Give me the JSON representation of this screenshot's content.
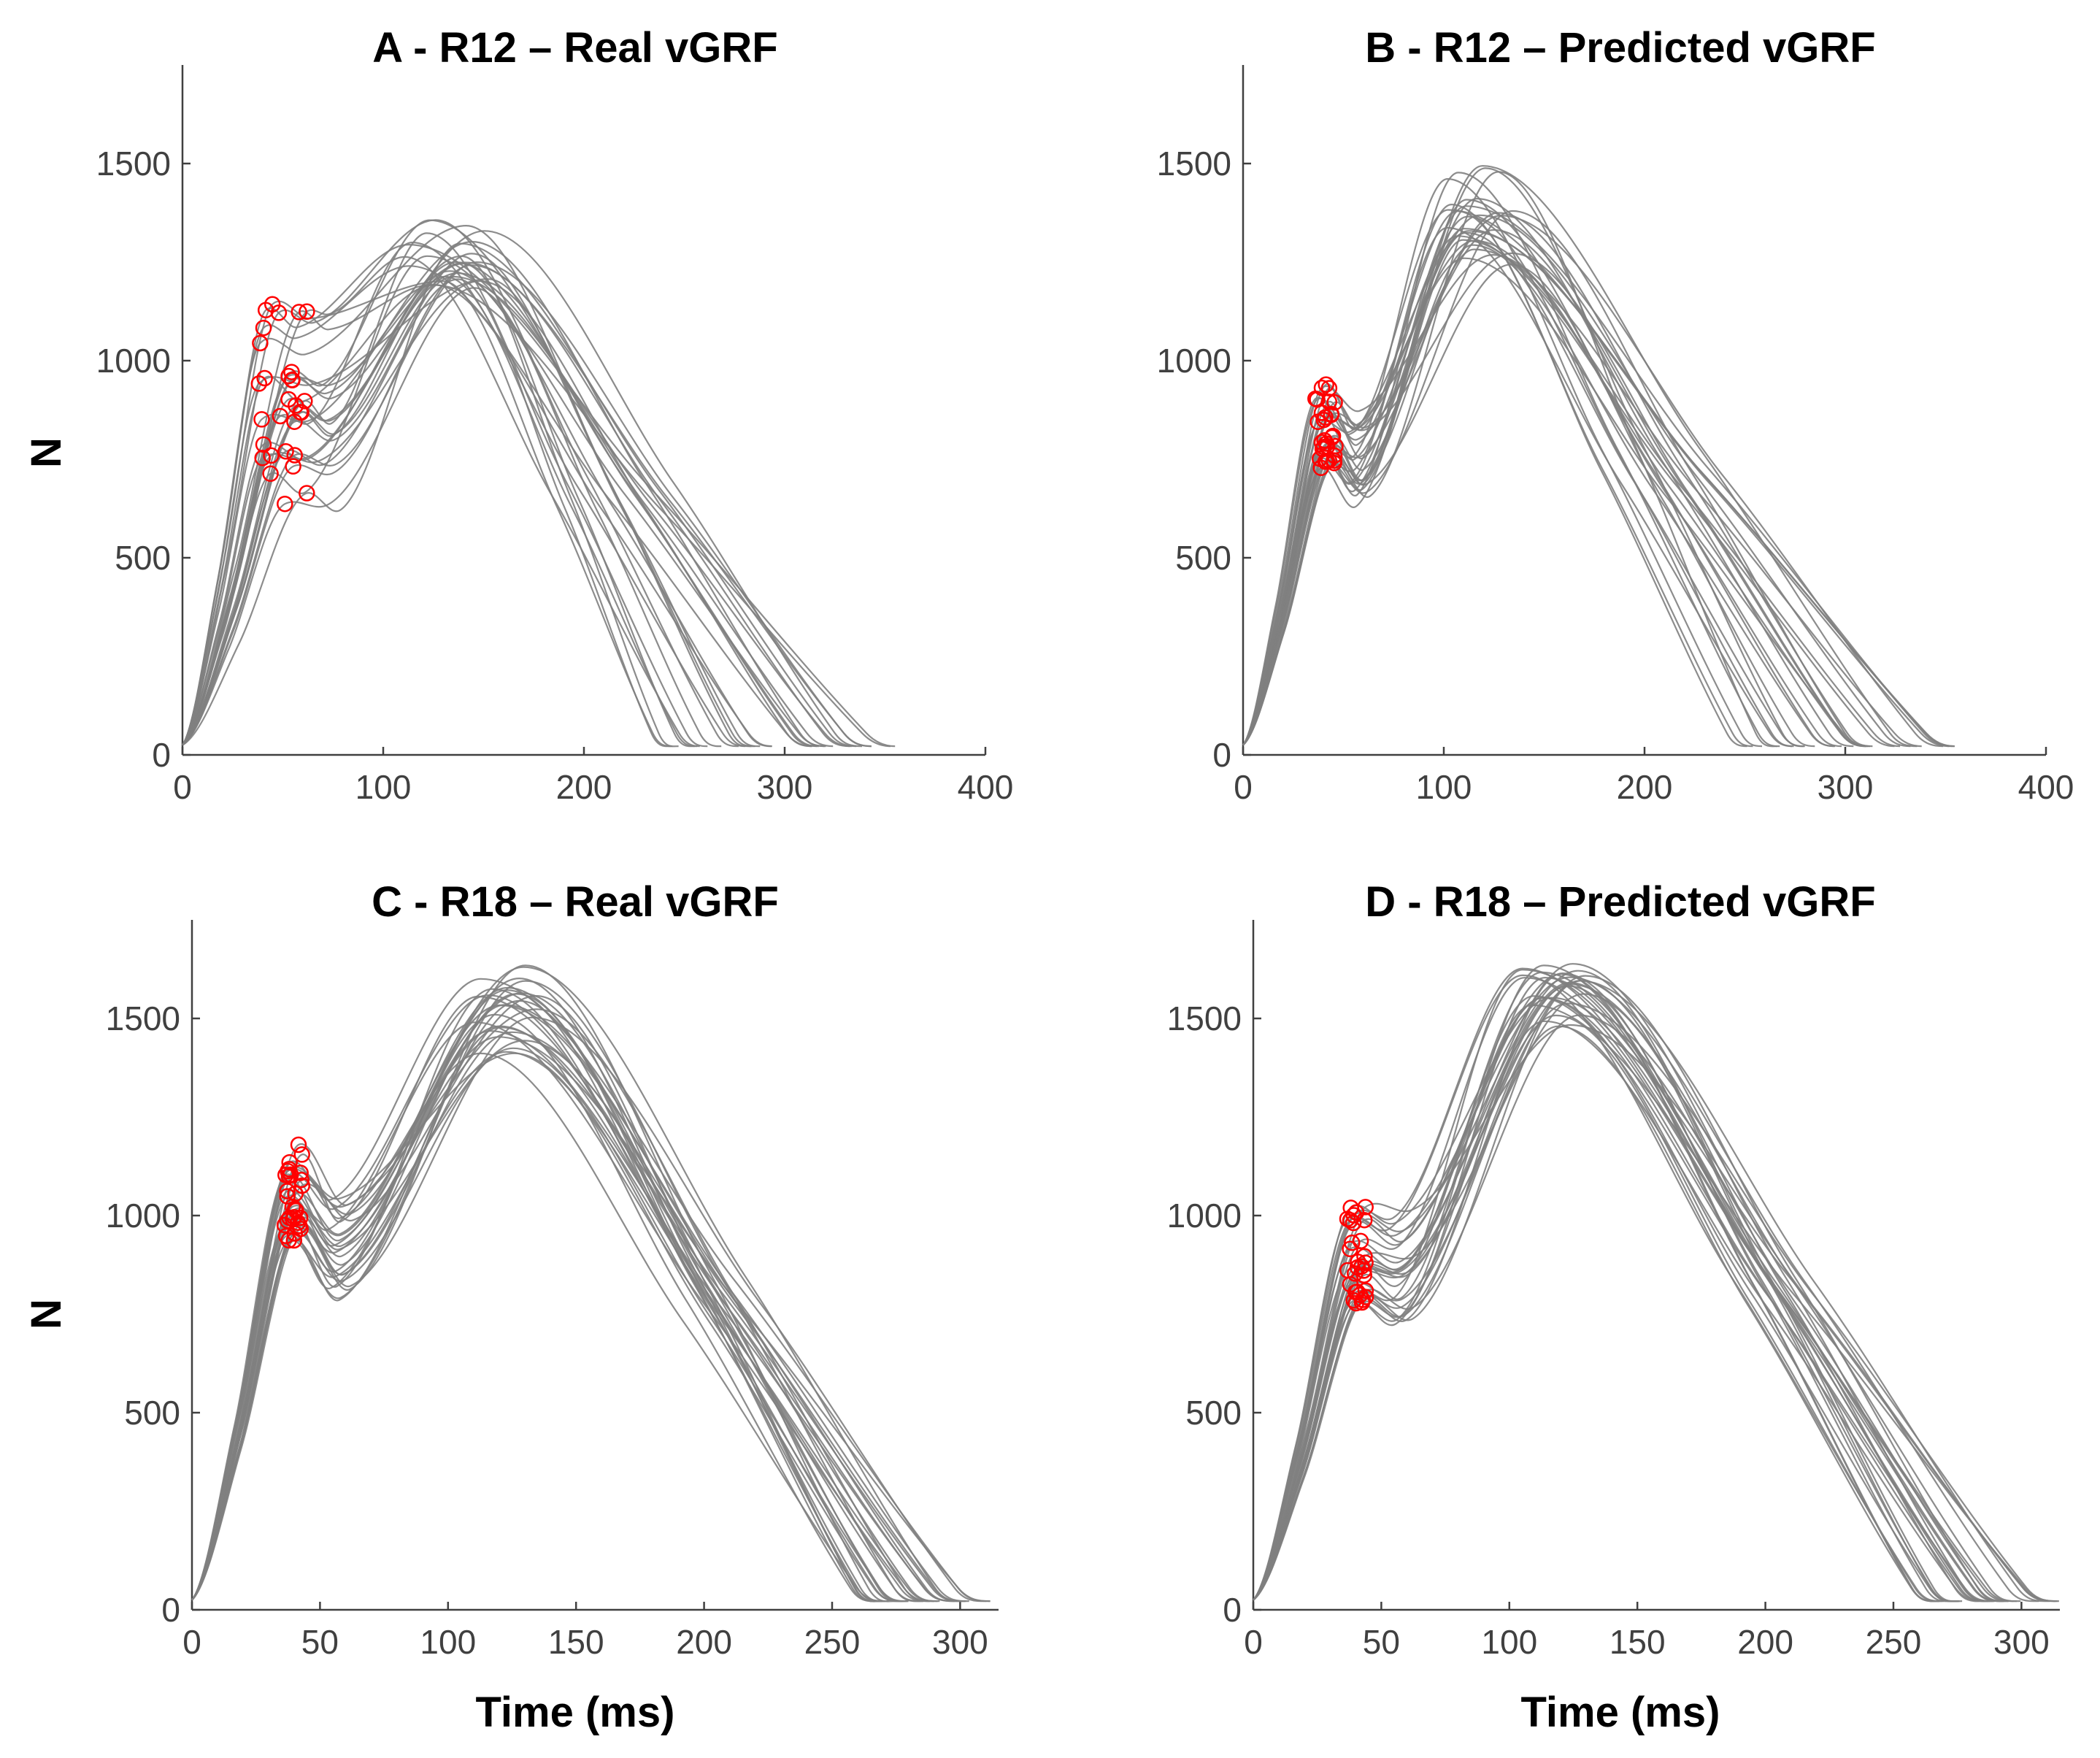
{
  "chart_data": [
    {
      "type": "line",
      "panel": "A",
      "title": "A - R12 – Real vGRF",
      "xlabel": "",
      "ylabel": "N",
      "xlim": [
        0,
        400
      ],
      "ylim": [
        0,
        1750
      ],
      "xticks": [
        "0",
        "100",
        "200",
        "300",
        "400"
      ],
      "yticks": [
        "0",
        "500",
        "1000",
        "1500"
      ],
      "line_color": "#808080",
      "marker_color": "#ff0000",
      "n_curves": 30,
      "params": {
        "mt": [
          38,
          62
        ],
        "mf": [
          620,
          1160
        ],
        "pt": [
          110,
          155
        ],
        "pf": [
          1180,
          1360
        ],
        "end": [
          240,
          355
        ],
        "dip": [
          0,
          60
        ]
      },
      "description_series": "Each grey line is one vGRF trial; red circles mark impact peaks (time ms, force N)"
    },
    {
      "type": "line",
      "panel": "B",
      "title": "B - R12 – Predicted vGRF",
      "xlabel": "",
      "ylabel": "",
      "xlim": [
        0,
        400
      ],
      "ylim": [
        0,
        1750
      ],
      "xticks": [
        "0",
        "100",
        "200",
        "300",
        "400"
      ],
      "yticks": [
        "0",
        "500",
        "1000",
        "1500"
      ],
      "line_color": "#808080",
      "marker_color": "#ff0000",
      "n_curves": 30,
      "params": {
        "mt": [
          36,
          46
        ],
        "mf": [
          720,
          940
        ],
        "pt": [
          100,
          140
        ],
        "pf": [
          1230,
          1500
        ],
        "end": [
          250,
          355
        ],
        "dip": [
          20,
          120
        ]
      },
      "description_series": "Each grey line is one vGRF trial; red circles mark impact peaks"
    },
    {
      "type": "line",
      "panel": "C",
      "title": "C - R18 – Real vGRF",
      "xlabel": "Time (ms)",
      "ylabel": "N",
      "xlim": [
        0,
        315
      ],
      "ylim": [
        0,
        1750
      ],
      "xticks": [
        "0",
        "50",
        "100",
        "150",
        "200",
        "250",
        "300"
      ],
      "yticks": [
        "0",
        "500",
        "1000",
        "1500"
      ],
      "line_color": "#808080",
      "marker_color": "#ff0000",
      "n_curves": 30,
      "params": {
        "mt": [
          36,
          43
        ],
        "mf": [
          890,
          1190
        ],
        "pt": [
          110,
          135
        ],
        "pf": [
          1400,
          1640
        ],
        "end": [
          265,
          312
        ],
        "dip": [
          60,
          180
        ]
      },
      "description_series": "Each grey line is one vGRF trial; red circles mark impact peaks"
    },
    {
      "type": "line",
      "panel": "D",
      "title": "D - R18 – Predicted vGRF",
      "xlabel": "Time (ms)",
      "ylabel": "",
      "xlim": [
        0,
        315
      ],
      "ylim": [
        0,
        1750
      ],
      "xticks": [
        "0",
        "50",
        "100",
        "150",
        "200",
        "250",
        "300"
      ],
      "yticks": [
        "0",
        "500",
        "1000",
        "1500"
      ],
      "line_color": "#808080",
      "marker_color": "#ff0000",
      "n_curves": 30,
      "params": {
        "mt": [
          36,
          44
        ],
        "mf": [
          770,
          1040
        ],
        "pt": [
          105,
          130
        ],
        "pf": [
          1480,
          1640
        ],
        "end": [
          265,
          315
        ],
        "dip": [
          0,
          60
        ]
      },
      "description_series": "Each grey line is one vGRF trial; red circles mark impact peaks"
    }
  ]
}
